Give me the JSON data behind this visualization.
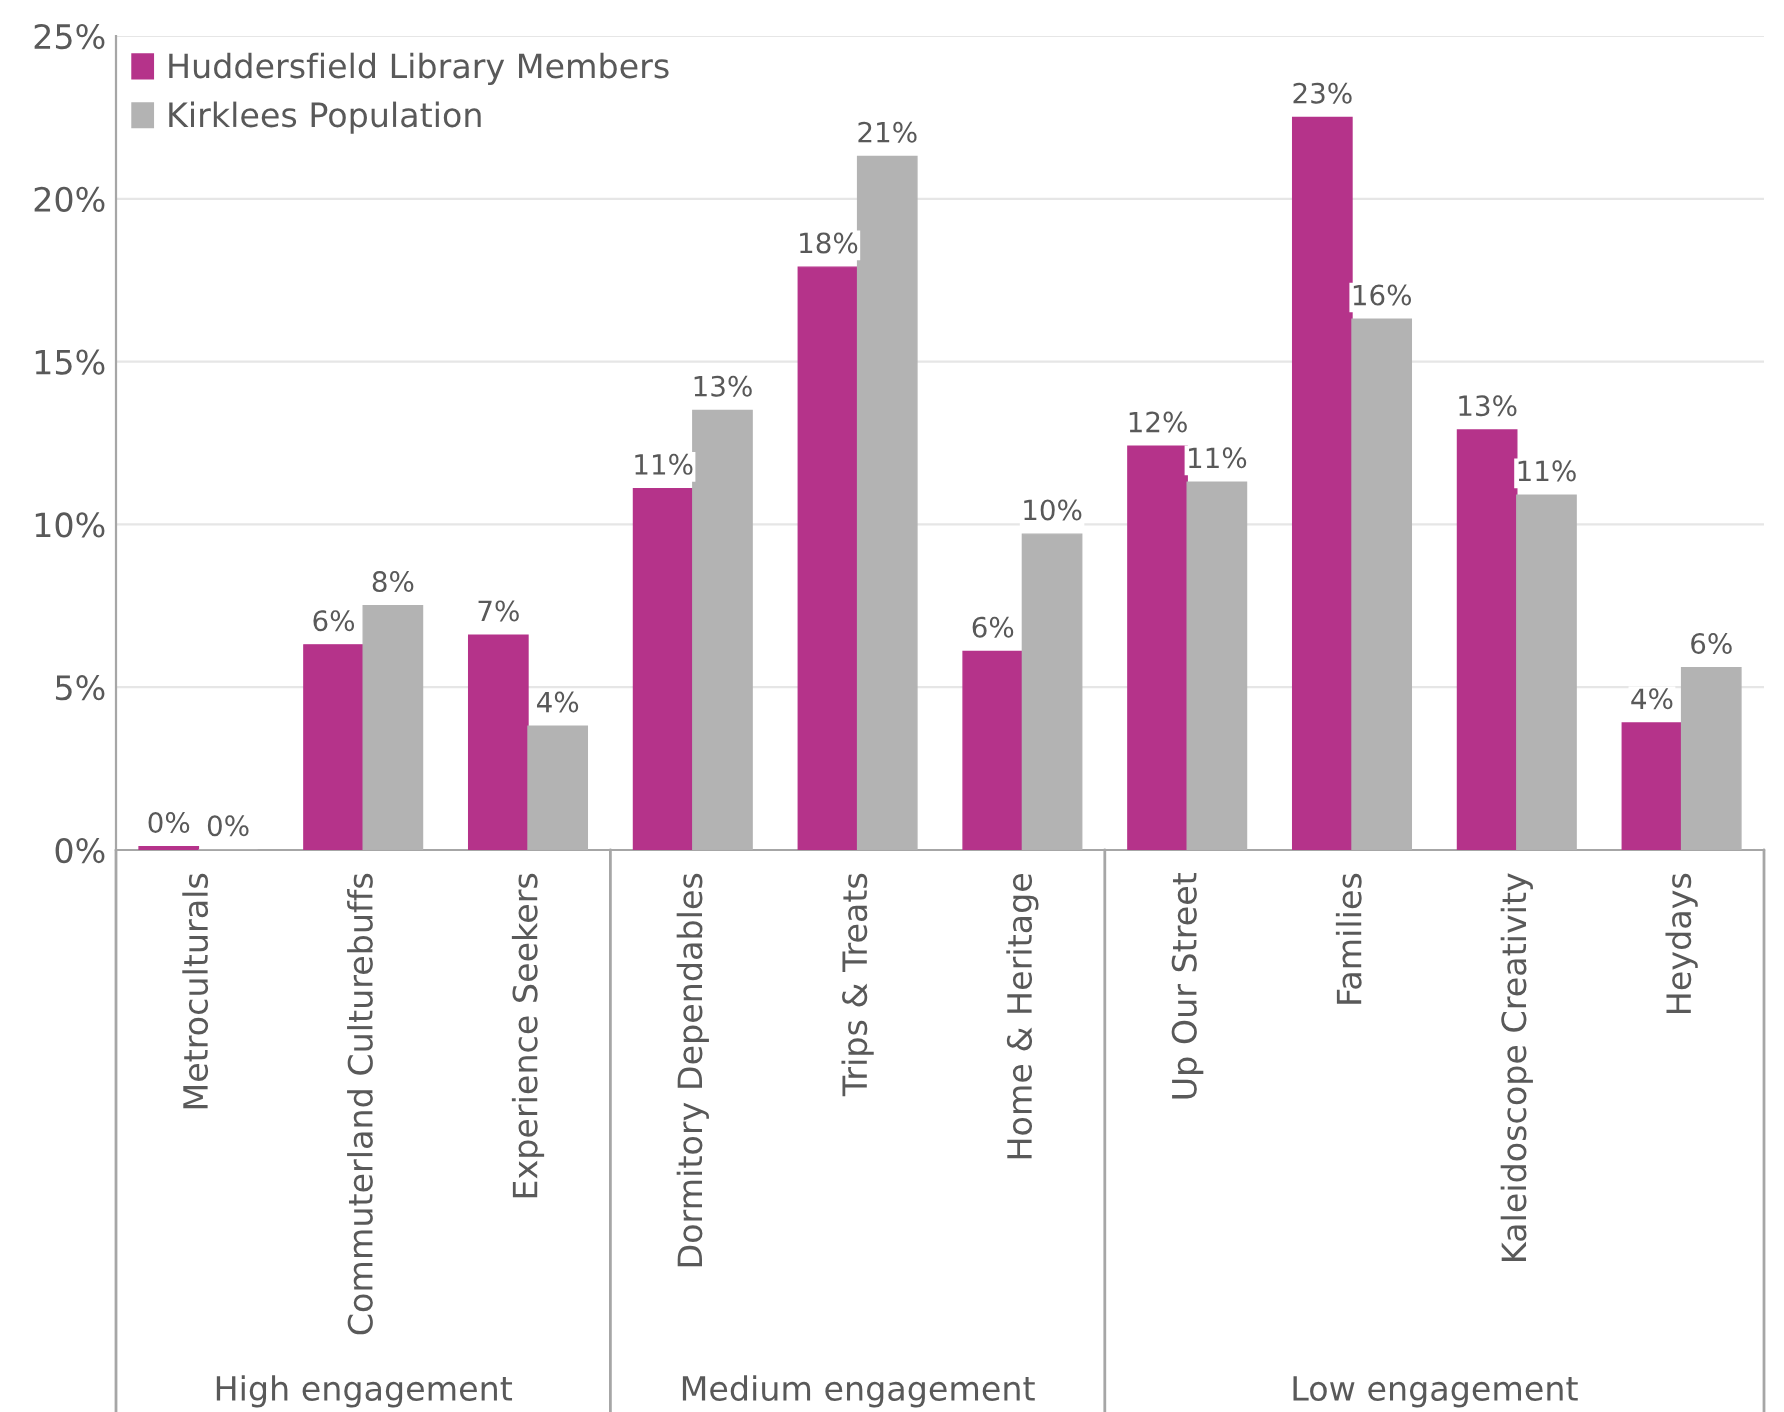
{
  "chart_data": {
    "type": "bar",
    "categories": [
      "Metroculturals",
      "Commuterland Culturebuffs",
      "Experience Seekers",
      "Dormitory Dependables",
      "Trips & Treats",
      "Home & Heritage",
      "Up Our Street",
      "Families",
      "Kaleidoscope Creativity",
      "Heydays"
    ],
    "series": [
      {
        "name": "Huddersfield Library Members",
        "color": "#b5338a",
        "values": [
          0.1,
          6.3,
          6.6,
          11.1,
          17.9,
          6.1,
          12.4,
          22.5,
          12.9,
          3.9
        ],
        "value_labels": [
          "0%",
          "6%",
          "7%",
          "11%",
          "18%",
          "6%",
          "12%",
          "23%",
          "13%",
          "4%"
        ]
      },
      {
        "name": "Kirklees Population",
        "color": "#b3b3b3",
        "values": [
          0.0,
          7.5,
          3.8,
          13.5,
          21.3,
          9.7,
          11.3,
          16.3,
          10.9,
          5.6
        ],
        "value_labels": [
          "0%",
          "8%",
          "4%",
          "13%",
          "21%",
          "10%",
          "11%",
          "16%",
          "11%",
          "6%"
        ]
      }
    ],
    "ylim": [
      0,
      25
    ],
    "yticks": [
      {
        "value": 0,
        "label": "0%"
      },
      {
        "value": 5,
        "label": "5%"
      },
      {
        "value": 10,
        "label": "10%"
      },
      {
        "value": 15,
        "label": "15%"
      },
      {
        "value": 20,
        "label": "20%"
      },
      {
        "value": 25,
        "label": "25%"
      }
    ],
    "grid": "y",
    "legend": "top left",
    "annotations": [
      "High engagement",
      "Medium engagement",
      "Low engagement"
    ]
  }
}
